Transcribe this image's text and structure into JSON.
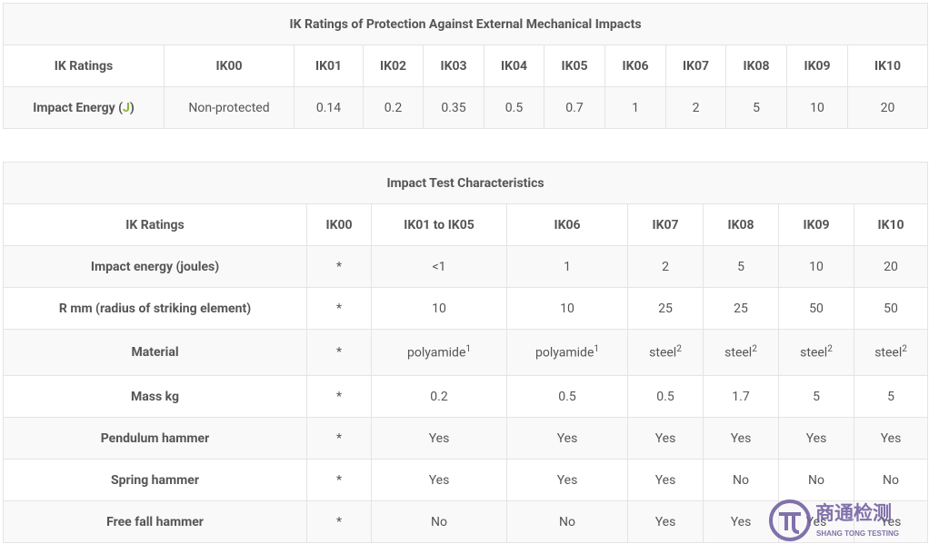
{
  "table1": {
    "title": "IK Ratings of Protection Against External Mechanical Impacts",
    "header": [
      "IK Ratings",
      "IK00",
      "IK01",
      "IK02",
      "IK03",
      "IK04",
      "IK05",
      "IK06",
      "IK07",
      "IK08",
      "IK09",
      "IK10"
    ],
    "rows": [
      [
        {
          "text": "Impact Energy (",
          "accent": "J",
          "after": ")"
        },
        "Non-protected",
        "0.14",
        "0.2",
        "0.35",
        "0.5",
        "0.7",
        "1",
        "2",
        "5",
        "10",
        "20"
      ]
    ]
  },
  "table2": {
    "title": "Impact Test Characteristics",
    "header": [
      "IK Ratings",
      "IK00",
      "IK01 to IK05",
      "IK06",
      "IK07",
      "IK08",
      "IK09",
      "IK10"
    ],
    "rows": [
      [
        "Impact energy (joules)",
        "*",
        "<1",
        "1",
        "2",
        "5",
        "10",
        "20"
      ],
      [
        "R mm (radius of striking element)",
        "*",
        "10",
        "10",
        "25",
        "25",
        "50",
        "50"
      ],
      [
        "Material",
        "*",
        {
          "text": "polyamide",
          "sup": "1"
        },
        {
          "text": "polyamide",
          "sup": "1"
        },
        {
          "text": "steel",
          "sup": "2"
        },
        {
          "text": "steel",
          "sup": "2"
        },
        {
          "text": "steel",
          "sup": "2"
        },
        {
          "text": "steel",
          "sup": "2"
        }
      ],
      [
        "Mass kg",
        "*",
        "0.2",
        "0.5",
        "0.5",
        "1.7",
        "5",
        "5"
      ],
      [
        "Pendulum hammer",
        "*",
        "Yes",
        "Yes",
        "Yes",
        "Yes",
        "Yes",
        "Yes"
      ],
      [
        "Spring hammer",
        "*",
        "Yes",
        "Yes",
        "Yes",
        "No",
        "No",
        "No"
      ],
      [
        "Free fall hammer",
        "*",
        "No",
        "No",
        "Yes",
        "Yes",
        "Yes",
        "Yes"
      ]
    ]
  },
  "watermark": {
    "name": "商通检测",
    "subtitle": "SHANG TONG TESTING"
  }
}
